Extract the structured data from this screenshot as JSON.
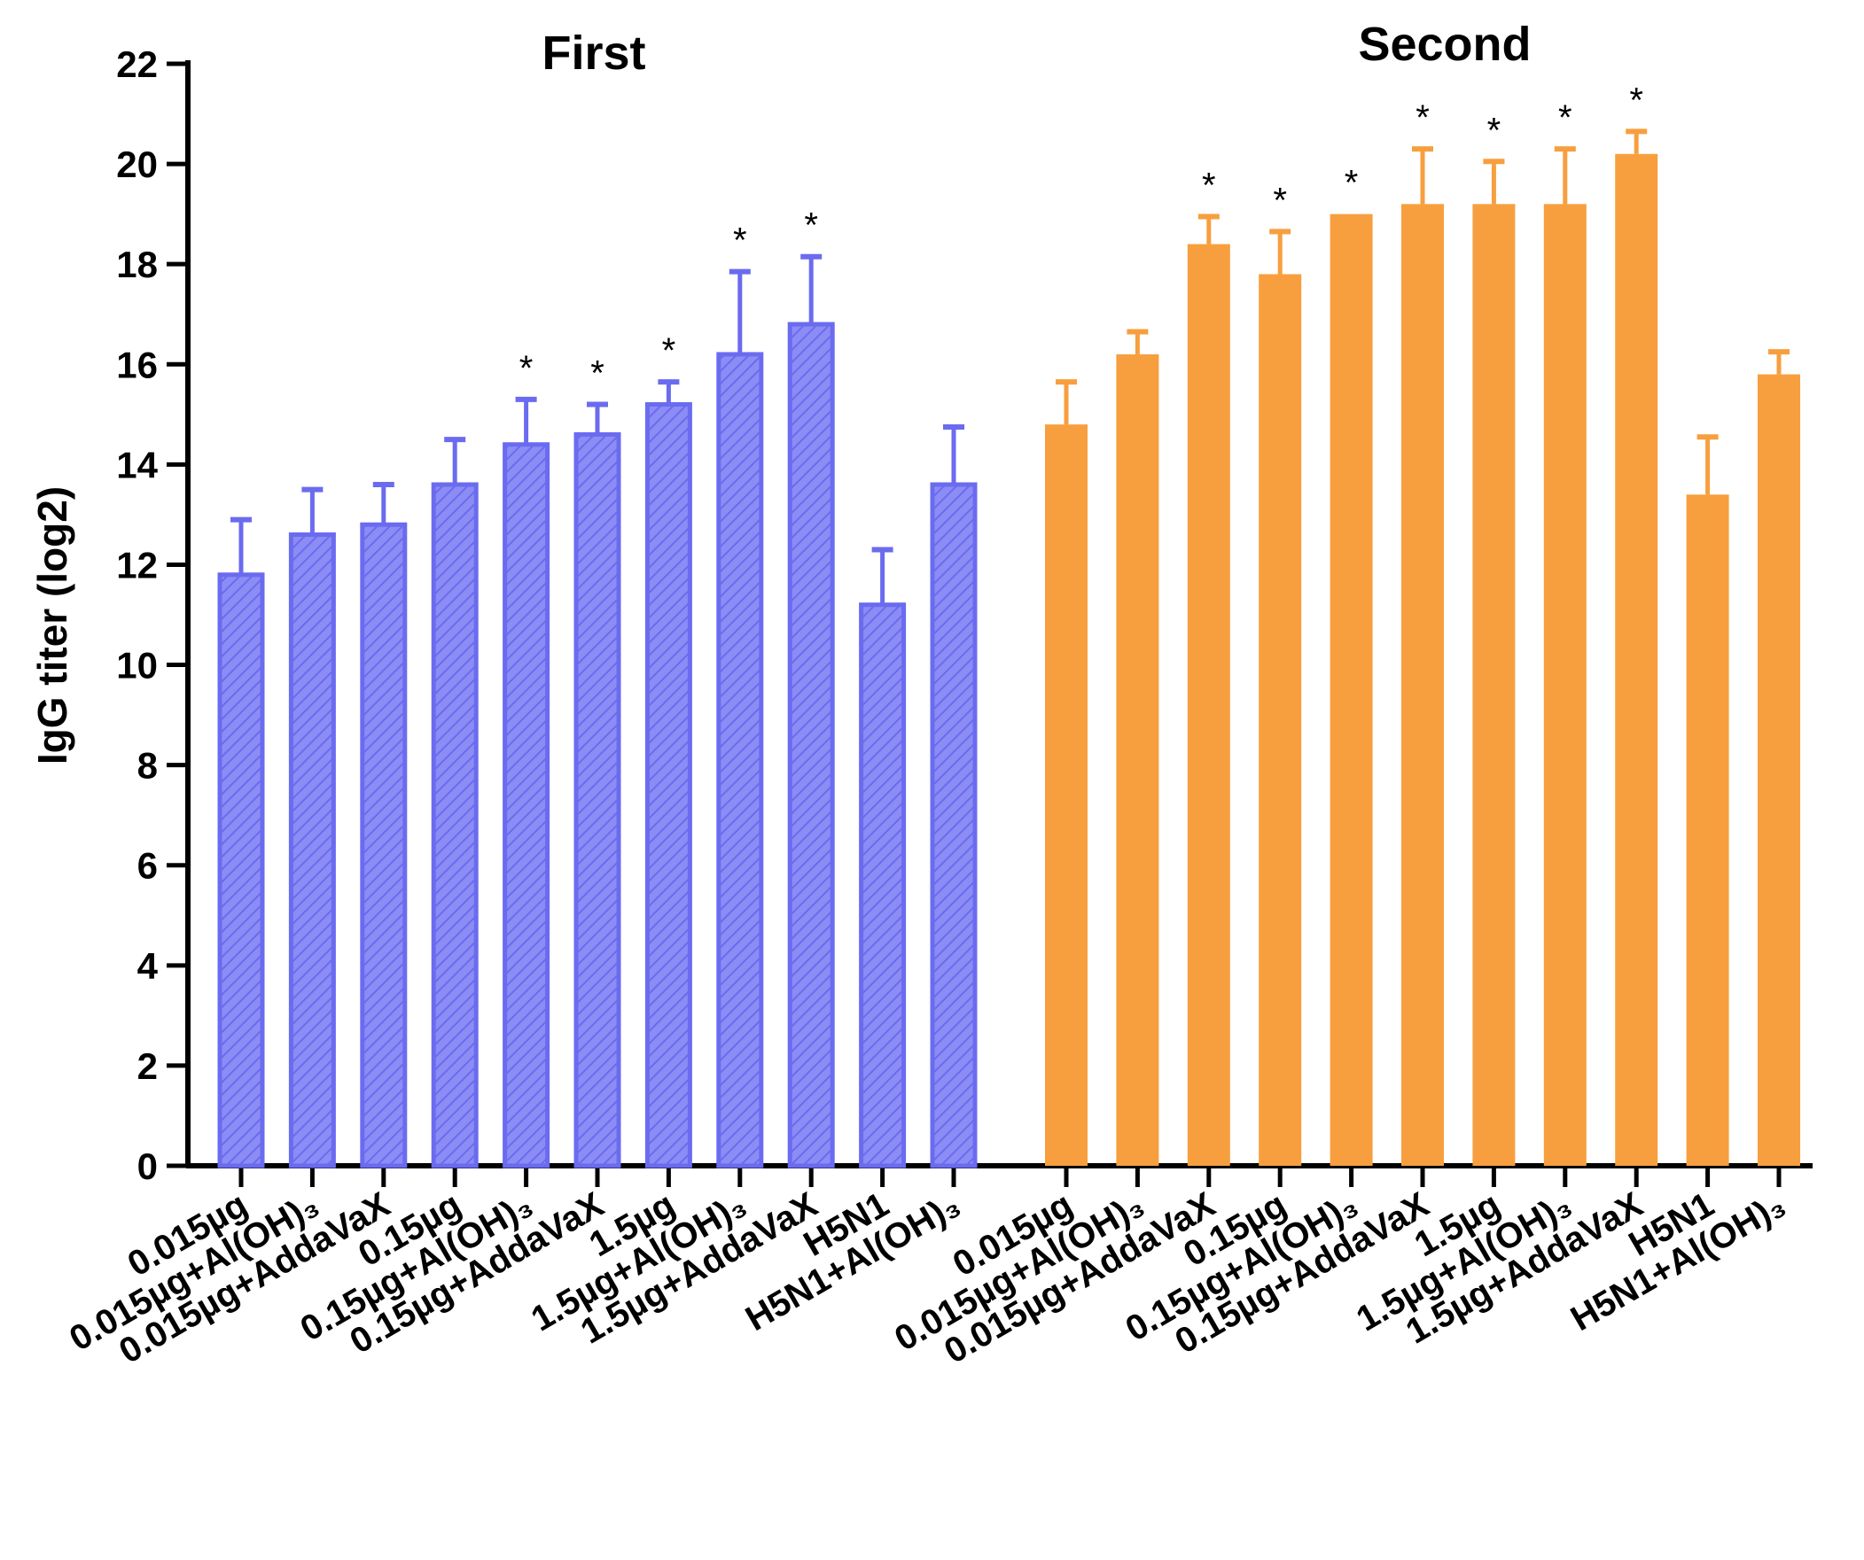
{
  "chart_data": {
    "type": "bar",
    "title": "",
    "xlabel": "",
    "ylabel": "IgG titer (log2)",
    "ylim": [
      0,
      22
    ],
    "yticks": [
      0,
      2,
      4,
      6,
      8,
      10,
      12,
      14,
      16,
      18,
      20,
      22
    ],
    "categories": [
      "0.015µg",
      "0.015µg+Al(OH)₃",
      "0.015µg+AddaVaX",
      "0.15µg",
      "0.15µg+Al(OH)₃",
      "0.15µg+AddaVaX",
      "1.5µg",
      "1.5µg+Al(OH)₃",
      "1.5µg+AddaVaX",
      "H5N1",
      "H5N1+Al(OH)₃"
    ],
    "series": [
      {
        "name": "First",
        "color": "#6b6bf0",
        "fill_color": "#8c8cf5",
        "pattern": "hatched",
        "values": [
          11.8,
          12.6,
          12.8,
          13.6,
          14.4,
          14.6,
          15.2,
          16.2,
          16.8,
          11.2,
          13.6
        ],
        "errors": [
          1.1,
          0.9,
          0.8,
          0.9,
          0.9,
          0.6,
          0.45,
          1.65,
          1.35,
          1.1,
          1.15
        ],
        "significant": [
          false,
          false,
          false,
          false,
          true,
          true,
          true,
          true,
          true,
          false,
          false
        ]
      },
      {
        "name": "Second",
        "color": "#f79f3f",
        "fill_color": "#f79f3f",
        "pattern": "solid",
        "values": [
          14.8,
          16.2,
          18.4,
          17.8,
          19.0,
          19.2,
          19.2,
          19.2,
          20.2,
          13.4,
          15.8
        ],
        "errors": [
          0.85,
          0.45,
          0.55,
          0.85,
          0.0,
          1.1,
          0.85,
          1.1,
          0.45,
          1.15,
          0.45
        ],
        "significant": [
          false,
          false,
          true,
          true,
          true,
          true,
          true,
          true,
          true,
          false,
          false
        ]
      }
    ],
    "significance_marker": "*"
  }
}
